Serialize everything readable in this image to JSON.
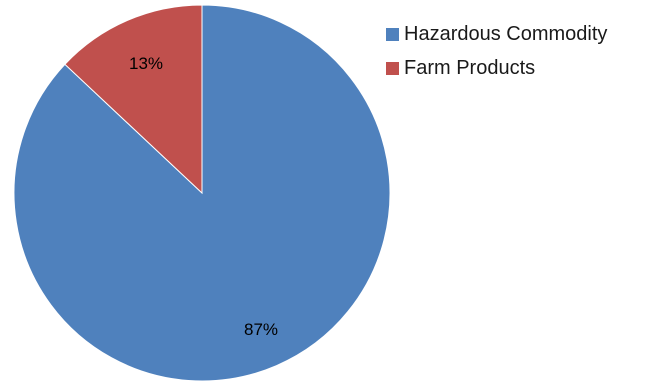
{
  "chart_data": {
    "type": "pie",
    "title": "",
    "slices": [
      {
        "label": "Hazardous Commodity",
        "value": 87,
        "display": "87%",
        "color": "#4F81BD"
      },
      {
        "label": "Farm Products",
        "value": 13,
        "display": "13%",
        "color": "#C0504D"
      }
    ],
    "legend": {
      "position": "right"
    }
  }
}
